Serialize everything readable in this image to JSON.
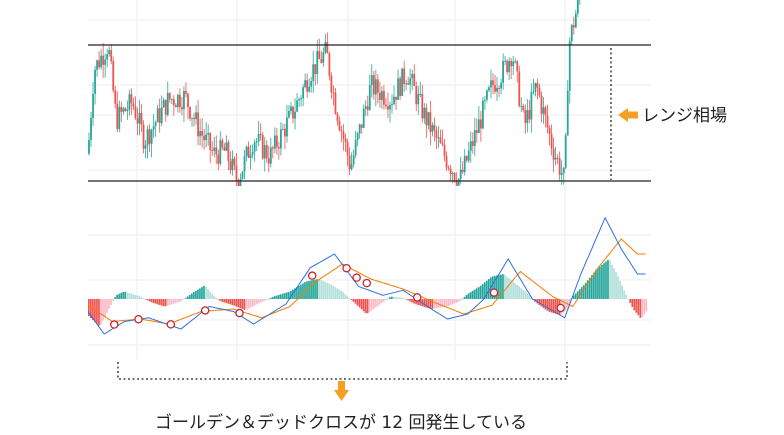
{
  "annotations": {
    "range_label": "レンジ相場",
    "bottom_note": "ゴールデン＆デッドクロスが 12 回発生している"
  },
  "colors": {
    "up": "#26a69a",
    "down": "#ef5350",
    "up_light": "#b2dfdb",
    "down_light": "#f8bbc8",
    "macd_line": "#2f6fe0",
    "signal_line": "#f57c00",
    "range_line": "#222222",
    "arrow": "#f5a023",
    "grid": "#eeeeee",
    "cross_marker": "#c62828"
  },
  "chart_data": [
    {
      "type": "candlestick",
      "title": "",
      "price_scale": "unlabeled",
      "range_high": 100,
      "range_low": 0,
      "ylim": [
        -8,
        165
      ],
      "segments": [
        [
          0,
          20
        ],
        [
          3,
          82
        ],
        [
          10,
          100
        ],
        [
          14,
          45
        ],
        [
          22,
          58
        ],
        [
          28,
          30
        ],
        [
          40,
          60
        ],
        [
          48,
          62
        ],
        [
          55,
          38
        ],
        [
          62,
          20
        ],
        [
          68,
          22
        ],
        [
          74,
          0
        ],
        [
          82,
          32
        ],
        [
          90,
          18
        ],
        [
          102,
          52
        ],
        [
          110,
          80
        ],
        [
          118,
          95
        ],
        [
          122,
          60
        ],
        [
          130,
          10
        ],
        [
          140,
          70
        ],
        [
          150,
          60
        ],
        [
          158,
          80
        ],
        [
          166,
          50
        ],
        [
          176,
          20
        ],
        [
          184,
          0
        ],
        [
          192,
          35
        ],
        [
          200,
          70
        ],
        [
          206,
          82
        ],
        [
          210,
          95
        ],
        [
          216,
          40
        ],
        [
          222,
          70
        ],
        [
          230,
          25
        ],
        [
          236,
          0
        ],
        [
          238,
          100
        ],
        [
          244,
          140
        ],
        [
          248,
          165
        ],
        [
          256,
          170
        ]
      ]
    },
    {
      "type": "macd",
      "series": [
        {
          "name": "",
          "points": [
            [
              0,
              -1
            ],
            [
              8,
              -2.8
            ],
            [
              18,
              -1.8
            ],
            [
              30,
              -1.5
            ],
            [
              46,
              -2.4
            ],
            [
              60,
              -0.6
            ],
            [
              72,
              -1
            ],
            [
              82,
              -2
            ],
            [
              98,
              -0.4
            ],
            [
              110,
              2.5
            ],
            [
              122,
              3.6
            ],
            [
              134,
              1
            ],
            [
              146,
              0.3
            ],
            [
              156,
              0.7
            ],
            [
              168,
              -0.6
            ],
            [
              178,
              -1.6
            ],
            [
              188,
              -1.2
            ],
            [
              196,
              0
            ],
            [
              208,
              3.2
            ],
            [
              220,
              0
            ],
            [
              236,
              -1.5
            ],
            [
              244,
              2
            ],
            [
              256,
              6.5
            ],
            [
              264,
              4
            ],
            [
              272,
              2
            ]
          ]
        },
        {
          "name": "",
          "points": [
            [
              0,
              -0.5
            ],
            [
              12,
              -1.8
            ],
            [
              26,
              -1.6
            ],
            [
              40,
              -2
            ],
            [
              56,
              -1
            ],
            [
              72,
              -0.8
            ],
            [
              86,
              -1.5
            ],
            [
              100,
              -0.6
            ],
            [
              112,
              1.3
            ],
            [
              126,
              2.8
            ],
            [
              140,
              1.6
            ],
            [
              156,
              0.8
            ],
            [
              172,
              -0.3
            ],
            [
              186,
              -1.2
            ],
            [
              200,
              -0.5
            ],
            [
              214,
              2.2
            ],
            [
              230,
              0.2
            ],
            [
              240,
              -0.6
            ],
            [
              252,
              2.4
            ],
            [
              264,
              4.8
            ],
            [
              272,
              3.6
            ]
          ]
        }
      ],
      "histogram": [
        [
          0,
          -1.3
        ],
        [
          6,
          -2.2
        ],
        [
          14,
          0.3
        ],
        [
          18,
          0.6
        ],
        [
          26,
          0.2
        ],
        [
          32,
          -0.3
        ],
        [
          38,
          -0.6
        ],
        [
          46,
          -0.2
        ],
        [
          52,
          0.5
        ],
        [
          58,
          1.1
        ],
        [
          62,
          0.3
        ],
        [
          66,
          -0.2
        ],
        [
          72,
          -0.5
        ],
        [
          78,
          -0.9
        ],
        [
          84,
          -0.4
        ],
        [
          92,
          0.2
        ],
        [
          100,
          0.6
        ],
        [
          108,
          1.4
        ],
        [
          114,
          1.6
        ],
        [
          120,
          1.2
        ],
        [
          126,
          0.6
        ],
        [
          132,
          -0.3
        ],
        [
          138,
          -1.2
        ],
        [
          144,
          -0.5
        ],
        [
          150,
          0.2
        ],
        [
          156,
          0.1
        ],
        [
          162,
          -0.4
        ],
        [
          170,
          -0.8
        ],
        [
          178,
          -0.6
        ],
        [
          184,
          -0.2
        ],
        [
          188,
          0.4
        ],
        [
          194,
          1
        ],
        [
          200,
          1.8
        ],
        [
          206,
          2
        ],
        [
          212,
          1.2
        ],
        [
          218,
          0.4
        ],
        [
          222,
          -0.3
        ],
        [
          228,
          -1
        ],
        [
          234,
          -1.3
        ],
        [
          238,
          -0.7
        ],
        [
          240,
          0.2
        ],
        [
          246,
          1.2
        ],
        [
          252,
          2.4
        ],
        [
          258,
          3.2
        ],
        [
          262,
          2
        ],
        [
          266,
          0.5
        ],
        [
          270,
          -0.8
        ],
        [
          274,
          -1.6
        ],
        [
          278,
          -0.6
        ]
      ],
      "crosses_x": [
        13,
        25,
        41,
        58,
        75,
        111,
        128,
        133,
        138,
        163,
        201,
        234
      ],
      "ylim": [
        -4.8,
        8.5
      ]
    }
  ]
}
